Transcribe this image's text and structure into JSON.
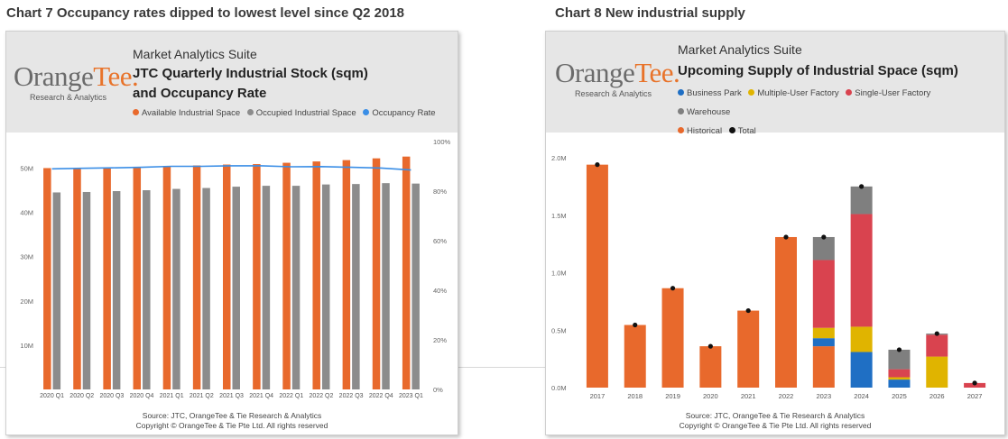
{
  "left": {
    "caption": "Chart 7 Occupancy rates dipped to lowest level since Q2 2018",
    "suite": "Market Analytics Suite",
    "logo_main": "Orange",
    "logo_accent": "Tee",
    "logo_mark": ".",
    "logo_sub": "Research & Analytics",
    "title_line1": "JTC Quarterly Industrial Stock (sqm)",
    "title_line2": "and Occupancy Rate",
    "legend": [
      {
        "label": "Available Industrial Space",
        "color": "#e8692c"
      },
      {
        "label": "Occupied Industrial Space",
        "color": "#8c8c8c"
      },
      {
        "label": "Occupancy Rate",
        "color": "#3a8ee6"
      }
    ],
    "source_line1": "Source: JTC, OrangeTee & Tie Research & Analytics",
    "source_line2": "Copyright © OrangeTee & Tie Pte Ltd. All rights reserved"
  },
  "right": {
    "caption": "Chart 8 New industrial supply",
    "suite": "Market Analytics Suite",
    "logo_main": "Orange",
    "logo_accent": "Tee",
    "logo_mark": ".",
    "logo_sub": "Research & Analytics",
    "title": "Upcoming Supply of Industrial Space (sqm)",
    "legend_row1": [
      {
        "label": "Business Park",
        "color": "#1f6fc4"
      },
      {
        "label": "Multiple-User Factory",
        "color": "#e0b400"
      },
      {
        "label": "Single-User Factory",
        "color": "#d9434f"
      },
      {
        "label": "Warehouse",
        "color": "#7f7f7f"
      }
    ],
    "legend_row2": [
      {
        "label": "Historical",
        "color": "#e8692c"
      },
      {
        "label": "Total",
        "color": "#111111"
      }
    ],
    "source_line1": "Source: JTC, OrangeTee & Tie Research & Analytics",
    "source_line2": "Copyright © OrangeTee & Tie Pte Ltd. All rights reserved"
  },
  "chart_data": [
    {
      "type": "bar",
      "title": "JTC Quarterly Industrial Stock (sqm) and Occupancy Rate",
      "categories": [
        "2020 Q1",
        "2020 Q2",
        "2020 Q3",
        "2020 Q4",
        "2021 Q1",
        "2021 Q2",
        "2021 Q3",
        "2021 Q4",
        "2022 Q1",
        "2022 Q2",
        "2022 Q3",
        "2022 Q4",
        "2023 Q1"
      ],
      "series": [
        {
          "name": "Available Industrial Space",
          "color": "#e8692c",
          "values": [
            50.0,
            50.0,
            50.1,
            50.2,
            50.3,
            50.6,
            50.8,
            50.9,
            51.2,
            51.5,
            51.8,
            52.2,
            52.6
          ]
        },
        {
          "name": "Occupied Industrial Space",
          "color": "#8c8c8c",
          "values": [
            44.5,
            44.6,
            44.8,
            45.0,
            45.3,
            45.5,
            45.8,
            46.0,
            46.0,
            46.3,
            46.4,
            46.6,
            46.5
          ]
        },
        {
          "name": "Occupancy Rate",
          "color": "#3a8ee6",
          "axis": "right",
          "values": [
            89.0,
            89.2,
            89.4,
            89.6,
            90.0,
            90.0,
            90.2,
            90.2,
            89.8,
            89.9,
            89.6,
            89.3,
            88.5
          ]
        }
      ],
      "y_left": {
        "ticks": [
          10,
          20,
          30,
          40,
          50
        ],
        "tick_labels": [
          "10M",
          "20M",
          "30M",
          "40M",
          "50M"
        ],
        "range": [
          0,
          56
        ]
      },
      "y_right": {
        "ticks": [
          0,
          20,
          40,
          60,
          80,
          100
        ],
        "tick_labels": [
          "0%",
          "20%",
          "40%",
          "60%",
          "80%",
          "100%"
        ],
        "range": [
          0,
          100
        ]
      },
      "legend_position": "top"
    },
    {
      "type": "bar",
      "stacked": true,
      "title": "Upcoming Supply of Industrial Space (sqm)",
      "categories": [
        "2017",
        "2018",
        "2019",
        "2020",
        "2021",
        "2022",
        "2023",
        "2024",
        "2025",
        "2026",
        "2027"
      ],
      "series": [
        {
          "name": "Historical",
          "color": "#e8692c",
          "values": [
            1.94,
            0.545,
            0.865,
            0.36,
            0.67,
            1.31,
            0.36,
            0,
            0,
            0,
            0
          ]
        },
        {
          "name": "Business Park",
          "color": "#1f6fc4",
          "values": [
            0,
            0,
            0,
            0,
            0,
            0,
            0.07,
            0.31,
            0.07,
            0,
            0
          ]
        },
        {
          "name": "Multiple-User Factory",
          "color": "#e0b400",
          "values": [
            0,
            0,
            0,
            0,
            0,
            0,
            0.09,
            0.22,
            0.02,
            0.27,
            0
          ]
        },
        {
          "name": "Single-User Factory",
          "color": "#d9434f",
          "values": [
            0,
            0,
            0,
            0,
            0,
            0,
            0.59,
            0.98,
            0.07,
            0.19,
            0.04
          ]
        },
        {
          "name": "Warehouse",
          "color": "#7f7f7f",
          "values": [
            0,
            0,
            0,
            0,
            0,
            0,
            0.2,
            0.24,
            0.17,
            0.01,
            0
          ]
        }
      ],
      "totals": {
        "name": "Total",
        "color": "#111111",
        "values": [
          1.94,
          0.545,
          0.865,
          0.36,
          0.67,
          1.31,
          1.31,
          1.75,
          0.33,
          0.47,
          0.04
        ]
      },
      "y": {
        "ticks": [
          0,
          0.5,
          1.0,
          1.5,
          2.0
        ],
        "tick_labels": [
          "0.0M",
          "0.5M",
          "1.0M",
          "1.5M",
          "2.0M"
        ],
        "range": [
          0,
          2.0
        ],
        "unit": "M sqm"
      },
      "legend_position": "top"
    }
  ]
}
